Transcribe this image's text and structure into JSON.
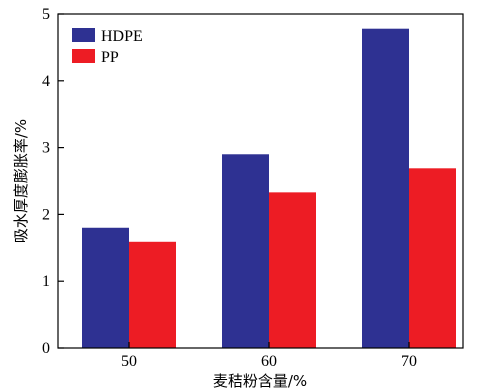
{
  "chart_data": {
    "type": "bar",
    "categories": [
      "50",
      "60",
      "70"
    ],
    "series": [
      {
        "name": "HDPE",
        "values": [
          1.8,
          2.9,
          4.78
        ],
        "color": "#2e3192"
      },
      {
        "name": "PP",
        "values": [
          1.59,
          2.33,
          2.69
        ],
        "color": "#ed1c24"
      }
    ],
    "xlabel": "麦秸粉含量/%",
    "ylabel": "吸水厚度膨胀率/%",
    "ylim": [
      0,
      5
    ],
    "yticks": [
      "0",
      "1",
      "2",
      "3",
      "4",
      "5"
    ],
    "legend": "top-left",
    "grid": false
  }
}
